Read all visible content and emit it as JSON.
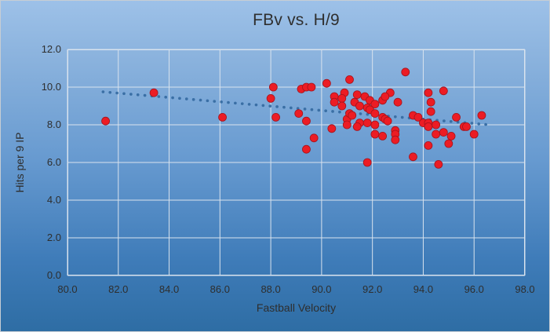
{
  "chart": {
    "title": "FBv vs. H/9",
    "x_axis": {
      "label": "Fastball Velocity",
      "min": 80.0,
      "max": 98.0,
      "tick_step": 2.0,
      "ticks": [
        "80.0",
        "82.0",
        "84.0",
        "86.0",
        "88.0",
        "90.0",
        "92.0",
        "94.0",
        "96.0",
        "98.0"
      ]
    },
    "y_axis": {
      "label": "Hits per 9 IP",
      "min": 0.0,
      "max": 12.0,
      "tick_step": 2.0,
      "ticks": [
        "0.0",
        "2.0",
        "4.0",
        "6.0",
        "8.0",
        "10.0",
        "12.0"
      ]
    },
    "colors": {
      "marker": "#ec1c24",
      "marker_edge": "#a5131c",
      "trendline": "#3a6fa5",
      "gridline": "#d9e3ee",
      "plot_border": "#d9e3ee",
      "text": "#2e2e2e",
      "background_top": "#9dc1e8",
      "background_bottom": "#2e6da4"
    }
  },
  "chart_data": {
    "type": "scatter",
    "title": "FBv vs. H/9",
    "xlabel": "Fastball Velocity",
    "ylabel": "Hits per 9 IP",
    "xlim": [
      80.0,
      98.0
    ],
    "ylim": [
      0.0,
      12.0
    ],
    "grid": true,
    "legend": false,
    "series": [
      {
        "name": "FBv vs H/9",
        "marker": "circle",
        "points": [
          [
            81.5,
            8.2
          ],
          [
            83.4,
            9.7
          ],
          [
            86.1,
            8.4
          ],
          [
            88.1,
            10.0
          ],
          [
            88.0,
            9.4
          ],
          [
            88.2,
            8.4
          ],
          [
            89.2,
            9.9
          ],
          [
            89.4,
            10.0
          ],
          [
            89.6,
            10.0
          ],
          [
            89.1,
            8.6
          ],
          [
            89.4,
            8.2
          ],
          [
            89.7,
            7.3
          ],
          [
            89.4,
            6.7
          ],
          [
            90.2,
            10.2
          ],
          [
            91.1,
            10.4
          ],
          [
            90.9,
            9.7
          ],
          [
            90.5,
            9.5
          ],
          [
            90.5,
            9.2
          ],
          [
            90.8,
            9.4
          ],
          [
            90.8,
            9.0
          ],
          [
            90.4,
            7.8
          ],
          [
            91.0,
            8.3
          ],
          [
            91.0,
            8.0
          ],
          [
            91.1,
            8.6
          ],
          [
            91.2,
            8.5
          ],
          [
            91.4,
            9.6
          ],
          [
            91.3,
            9.2
          ],
          [
            91.5,
            9.0
          ],
          [
            91.5,
            8.1
          ],
          [
            91.4,
            7.9
          ],
          [
            91.7,
            9.5
          ],
          [
            91.9,
            9.3
          ],
          [
            92.1,
            9.1
          ],
          [
            91.8,
            8.9
          ],
          [
            91.9,
            8.8
          ],
          [
            92.1,
            8.6
          ],
          [
            91.8,
            8.1
          ],
          [
            92.1,
            8.0
          ],
          [
            92.1,
            7.5
          ],
          [
            92.4,
            7.4
          ],
          [
            91.8,
            6.0
          ],
          [
            92.4,
            9.3
          ],
          [
            92.7,
            9.7
          ],
          [
            92.5,
            9.5
          ],
          [
            92.4,
            8.4
          ],
          [
            92.5,
            8.3
          ],
          [
            92.6,
            8.2
          ],
          [
            92.9,
            7.7
          ],
          [
            92.9,
            7.5
          ],
          [
            92.9,
            7.2
          ],
          [
            93.0,
            9.2
          ],
          [
            93.3,
            10.8
          ],
          [
            93.6,
            8.5
          ],
          [
            93.8,
            8.4
          ],
          [
            93.6,
            6.3
          ],
          [
            94.2,
            9.7
          ],
          [
            94.8,
            9.8
          ],
          [
            94.3,
            9.2
          ],
          [
            94.3,
            8.7
          ],
          [
            94.0,
            8.1
          ],
          [
            94.2,
            8.1
          ],
          [
            94.2,
            7.9
          ],
          [
            94.5,
            8.0
          ],
          [
            94.5,
            7.5
          ],
          [
            94.8,
            7.6
          ],
          [
            94.2,
            6.9
          ],
          [
            94.6,
            5.9
          ],
          [
            95.0,
            7.0
          ],
          [
            95.1,
            7.4
          ],
          [
            95.3,
            8.4
          ],
          [
            95.6,
            7.9
          ],
          [
            95.7,
            7.9
          ],
          [
            96.0,
            7.5
          ],
          [
            96.3,
            8.5
          ]
        ]
      }
    ],
    "trendline": {
      "style": "dotted",
      "x1": 81.4,
      "y1": 9.75,
      "x2": 96.6,
      "y2": 8.0
    }
  }
}
